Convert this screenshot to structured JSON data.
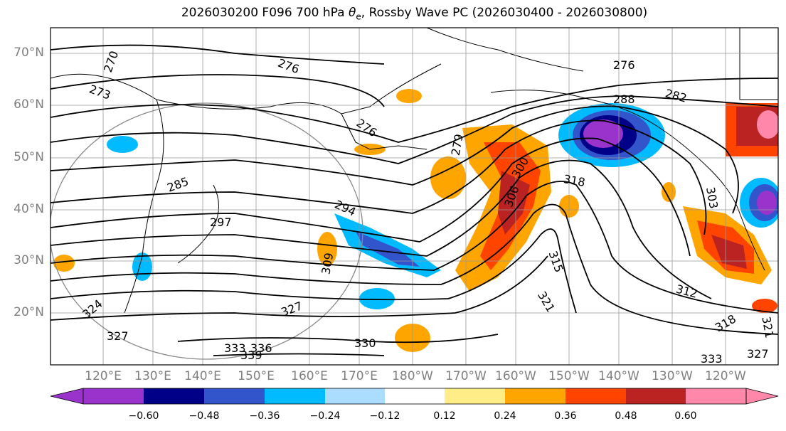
{
  "title": {
    "prefix": "2026030200 F096 700 hPa ",
    "theta_symbol": "θ",
    "theta_sub": "e",
    "suffix": ", Rossby Wave PC (2026030400 - 2026030800)"
  },
  "axes": {
    "lat_labels": [
      "70°N",
      "60°N",
      "50°N",
      "40°N",
      "30°N",
      "20°N"
    ],
    "lon_labels": [
      "120°E",
      "130°E",
      "140°E",
      "150°E",
      "160°E",
      "170°E",
      "180°W",
      "170°W",
      "160°W",
      "150°W",
      "140°W",
      "130°W",
      "120°W"
    ]
  },
  "contour_labels": [
    "270",
    "273",
    "276",
    "276",
    "276",
    "279",
    "282",
    "285",
    "288",
    "294",
    "297",
    "300",
    "303",
    "306",
    "309",
    "312",
    "315",
    "318",
    "318",
    "321",
    "321",
    "324",
    "327",
    "327",
    "327",
    "330",
    "333",
    "336",
    "339",
    "333"
  ],
  "colorbar": {
    "ticks": [
      "−0.60",
      "−0.48",
      "−0.36",
      "−0.24",
      "−0.12",
      "0.12",
      "0.24",
      "0.36",
      "0.48",
      "0.60"
    ],
    "colors": [
      "#9933cc",
      "#000088",
      "#3355cc",
      "#00bbff",
      "#aaddff",
      "#ffffff",
      "#ffee88",
      "#ffa500",
      "#ff4400",
      "#bb2222",
      "#ff88aa"
    ]
  },
  "chart_data": {
    "type": "heatmap",
    "title": "2026030200 F096 700 hPa θe, Rossby Wave PC (2026030400 - 2026030800)",
    "lat_range_deg_N": [
      10,
      75
    ],
    "lon_range": [
      "115°E",
      "115°W"
    ],
    "shading_levels": [
      -0.6,
      -0.48,
      -0.36,
      -0.24,
      -0.12,
      0.12,
      0.24,
      0.36,
      0.48,
      0.6
    ],
    "contour_variable": "700 hPa theta-e (K)",
    "contour_interval": 3,
    "contour_values_labeled": [
      270,
      273,
      276,
      279,
      282,
      285,
      288,
      294,
      297,
      300,
      303,
      306,
      309,
      312,
      315,
      318,
      321,
      324,
      327,
      330,
      333,
      336,
      339
    ],
    "grid": true
  }
}
